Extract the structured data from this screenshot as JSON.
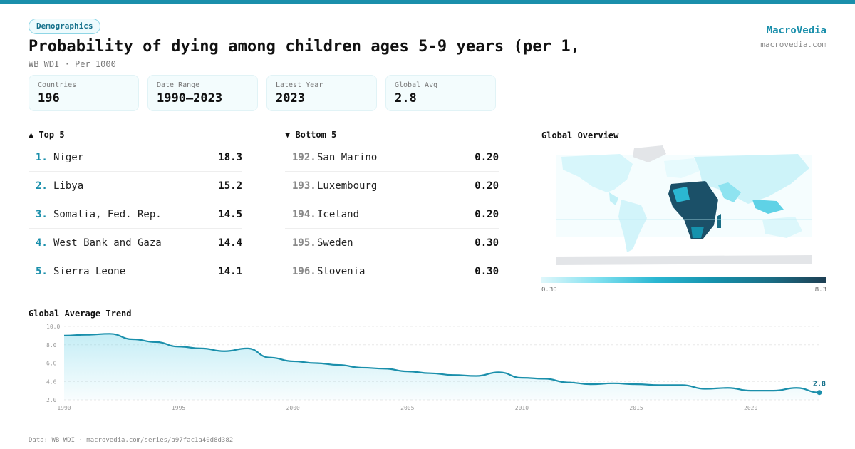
{
  "category_tag": "Demographics",
  "title": "Probability of dying among children ages 5-9 years (per 1,",
  "subtitle": "WB WDI · Per 1000",
  "brand": {
    "name": "MacroVedia",
    "url": "macrovedia.com"
  },
  "stats": [
    {
      "label": "Countries",
      "value": "196"
    },
    {
      "label": "Date Range",
      "value": "1990–2023"
    },
    {
      "label": "Latest Year",
      "value": "2023"
    },
    {
      "label": "Global Avg",
      "value": "2.8"
    }
  ],
  "top5": {
    "heading": "▲ Top 5",
    "items": [
      {
        "rank": "1.",
        "name": "Niger",
        "value": "18.3"
      },
      {
        "rank": "2.",
        "name": "Libya",
        "value": "15.2"
      },
      {
        "rank": "3.",
        "name": "Somalia, Fed. Rep.",
        "value": "14.5"
      },
      {
        "rank": "4.",
        "name": "West Bank and Gaza",
        "value": "14.4"
      },
      {
        "rank": "5.",
        "name": "Sierra Leone",
        "value": "14.1"
      }
    ]
  },
  "bottom5": {
    "heading": "▼ Bottom 5",
    "items": [
      {
        "rank": "192.",
        "name": "San Marino",
        "value": "0.20"
      },
      {
        "rank": "193.",
        "name": "Luxembourg",
        "value": "0.20"
      },
      {
        "rank": "194.",
        "name": "Iceland",
        "value": "0.20"
      },
      {
        "rank": "195.",
        "name": "Sweden",
        "value": "0.30"
      },
      {
        "rank": "196.",
        "name": "Slovenia",
        "value": "0.30"
      }
    ]
  },
  "map": {
    "heading": "Global Overview",
    "legend_min": "0.30",
    "legend_max": "8.3",
    "colors": [
      "#dff7fb",
      "#7fe0ef",
      "#2bb7d2",
      "#1592ad",
      "#1a6e86",
      "#1d3e52"
    ]
  },
  "trend_heading": "Global Average Trend",
  "footer": "Data: WB WDI · macrovedia.com/series/a97fac1a40d8d382",
  "chart_data": {
    "type": "area",
    "title": "Global Average Trend",
    "x": [
      1990,
      1991,
      1992,
      1993,
      1994,
      1995,
      1996,
      1997,
      1998,
      1999,
      2000,
      2001,
      2002,
      2003,
      2004,
      2005,
      2006,
      2007,
      2008,
      2009,
      2010,
      2011,
      2012,
      2013,
      2014,
      2015,
      2016,
      2017,
      2018,
      2019,
      2020,
      2021,
      2022,
      2023
    ],
    "series": [
      {
        "values": [
          9.0,
          9.1,
          9.2,
          8.6,
          8.3,
          7.8,
          7.6,
          7.3,
          7.6,
          6.6,
          6.2,
          6.0,
          5.8,
          5.5,
          5.4,
          5.1,
          4.9,
          4.7,
          4.6,
          5.0,
          4.4,
          4.3,
          3.9,
          3.7,
          3.8,
          3.7,
          3.6,
          3.6,
          3.2,
          3.3,
          3.0,
          3.0,
          3.3,
          2.8
        ]
      }
    ],
    "ylim": [
      2.0,
      10.0
    ],
    "yticks": [
      "2.0",
      "4.0",
      "6.0",
      "8.0",
      "10.0"
    ],
    "xticks": [
      "1990",
      "1995",
      "2000",
      "2005",
      "2010",
      "2015",
      "2020"
    ],
    "last_label": "2.8",
    "grid": true,
    "color": "#1a8fab"
  }
}
